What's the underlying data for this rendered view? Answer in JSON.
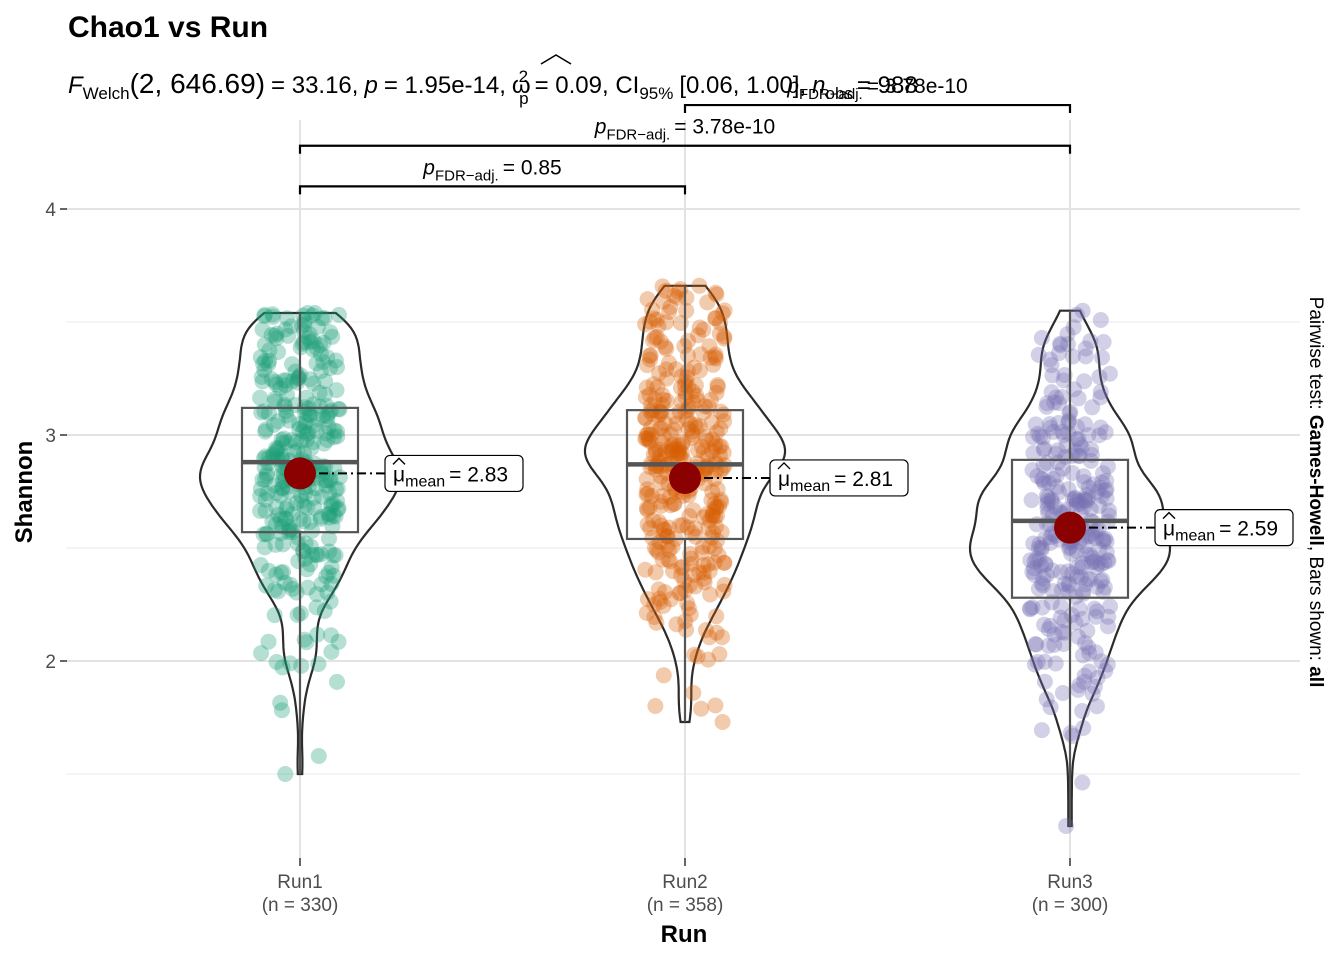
{
  "chart_data": {
    "type": "violin-box-scatter",
    "title": "Chao1 vs Run",
    "subtitle": {
      "F": "F",
      "F_sub": "Welch",
      "df": "(2, 646.69)",
      "F_value": "= 33.16,",
      "p": "p",
      "p_value": "= 1.95e-14,",
      "omega": "ω",
      "omega_sup": "2",
      "omega_sub": "p",
      "omega_value": "= 0.09, CI",
      "ci_sub": "95%",
      "ci_value": "[0.06, 1.00],",
      "n": "n",
      "n_sub": "obs",
      "n_value": "= 988"
    },
    "xlabel": "Run",
    "ylabel": "Shannon",
    "right_caption": {
      "prefix": "Pairwise test: ",
      "test": "Games-Howell",
      "middle": ", Bars shown: ",
      "bars": "all"
    },
    "ylim": [
      1.18,
      4.42
    ],
    "yticks": [
      2,
      3,
      4
    ],
    "grid": true,
    "groups": [
      {
        "name": "Run1",
        "n_label": "(n = 330)",
        "n": 330,
        "color": "#1b9e77",
        "mean": 2.83,
        "mean_label": "= 2.83",
        "median": 2.88,
        "q1": 2.57,
        "q3": 3.12,
        "whisker_low": 1.5,
        "whisker_high": 3.54,
        "min": 1.5,
        "max": 3.54
      },
      {
        "name": "Run2",
        "n_label": "(n = 358)",
        "n": 358,
        "color": "#d95f02",
        "mean": 2.81,
        "mean_label": "= 2.81",
        "median": 2.87,
        "q1": 2.54,
        "q3": 3.11,
        "whisker_low": 1.73,
        "whisker_high": 3.66,
        "min": 1.73,
        "max": 3.66
      },
      {
        "name": "Run3",
        "n_label": "(n = 300)",
        "n": 300,
        "color": "#7570b3",
        "mean": 2.59,
        "mean_label": "= 2.59",
        "median": 2.62,
        "q1": 2.28,
        "q3": 2.89,
        "whisker_low": 1.27,
        "whisker_high": 3.55,
        "min": 1.27,
        "max": 3.55
      }
    ],
    "mean_symbol": "μ",
    "mean_sub": "mean",
    "pairwise": [
      {
        "from": "Run1",
        "to": "Run2",
        "p_value": "= 0.85",
        "y": 4.1
      },
      {
        "from": "Run1",
        "to": "Run3",
        "p_value": "= 3.78e-10",
        "y": 4.28
      },
      {
        "from": "Run2",
        "to": "Run3",
        "p_value": "= 3.78e-10",
        "y": 4.46
      }
    ],
    "p_label": "p",
    "p_sub": "FDR−adj."
  }
}
